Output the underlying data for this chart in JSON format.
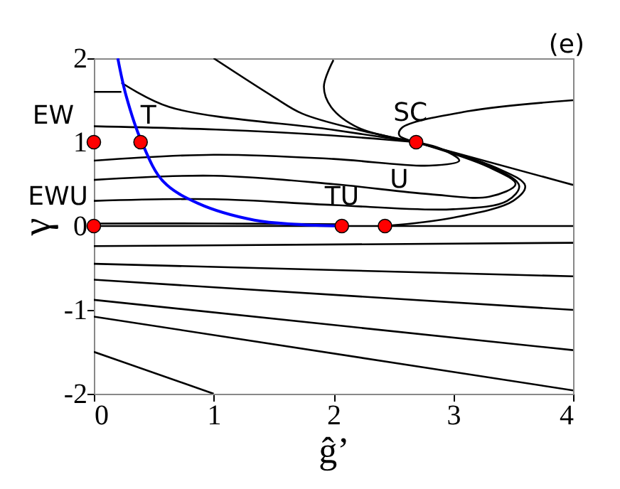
{
  "chart_data": {
    "type": "line",
    "xlabel": "ĝ’",
    "ylabel": "γ",
    "xlim": [
      0,
      4
    ],
    "ylim": [
      -2,
      2
    ],
    "xticks": [
      0,
      1,
      2,
      3,
      4
    ],
    "yticks": [
      -2,
      -1,
      0,
      1,
      2
    ],
    "grid": false,
    "line_style": "solid",
    "series": [
      {
        "color": "#000000",
        "x": [
          0,
          4
        ],
        "values": [
          0,
          0
        ]
      },
      {
        "color": "#000000",
        "x": [
          0,
          1,
          2.07
        ],
        "values": [
          0.03,
          0.03,
          0.02
        ]
      },
      {
        "color": "#000000",
        "x": [
          0,
          4
        ],
        "values": [
          -0.24,
          -0.2
        ]
      },
      {
        "color": "#000000",
        "x": [
          0,
          4
        ],
        "values": [
          -0.45,
          -0.6
        ]
      },
      {
        "color": "#000000",
        "x": [
          0,
          4
        ],
        "values": [
          -0.64,
          -1.0
        ]
      },
      {
        "color": "#000000",
        "x": [
          0,
          4
        ],
        "values": [
          -0.88,
          -1.48
        ]
      },
      {
        "color": "#000000",
        "x": [
          0,
          4
        ],
        "values": [
          -1.08,
          -1.96
        ]
      },
      {
        "color": "#000000",
        "x": [
          0,
          1
        ],
        "values": [
          -1.5,
          -2
        ]
      },
      {
        "color": "#000000",
        "x": [
          0,
          0.23
        ],
        "values": [
          1.6,
          1.6
        ]
      },
      {
        "color": "#000000",
        "x": [
          0.23,
          0.63,
          1.98,
          2.69
        ],
        "values": [
          1.71,
          1.42,
          1.15,
          1.0
        ]
      },
      {
        "color": "#000000",
        "x": [
          0,
          1.02,
          1.98,
          2.69
        ],
        "values": [
          1.19,
          1.15,
          1.08,
          1.0
        ]
      },
      {
        "color": "#000000",
        "x": [
          0,
          1,
          2,
          2.8,
          3.05,
          2.9,
          2.69
        ],
        "values": [
          0.78,
          0.85,
          0.8,
          0.72,
          0.78,
          0.92,
          1.0
        ]
      },
      {
        "color": "#000000",
        "x": [
          0,
          1,
          2,
          2.8,
          3.3,
          3.52,
          3.3,
          2.69
        ],
        "values": [
          0.55,
          0.6,
          0.5,
          0.38,
          0.35,
          0.5,
          0.7,
          1.0
        ]
      },
      {
        "color": "#000000",
        "x": [
          0,
          1,
          2,
          3,
          3.45,
          3.55,
          3.3,
          2.69
        ],
        "values": [
          0.3,
          0.32,
          0.25,
          0.2,
          0.3,
          0.48,
          0.72,
          1.0
        ]
      },
      {
        "color": "#000000",
        "x": [
          2.43,
          3.0,
          3.5,
          3.6,
          3.35,
          2.69
        ],
        "values": [
          0,
          0.1,
          0.3,
          0.48,
          0.7,
          1.0
        ]
      },
      {
        "color": "#000000",
        "x": [
          1,
          1.5,
          1.74,
          2.2,
          2.69
        ],
        "values": [
          2,
          1.54,
          1.34,
          1.15,
          1.0
        ]
      },
      {
        "color": "#000000",
        "x": [
          2.0,
          1.92,
          1.98,
          2.21,
          2.69
        ],
        "values": [
          1.98,
          1.66,
          1.42,
          1.17,
          1.0
        ]
      },
      {
        "color": "#000000",
        "x": [
          4,
          3.13,
          2.57,
          2.55,
          2.69
        ],
        "values": [
          1.5,
          1.37,
          1.17,
          1.08,
          1.0
        ]
      },
      {
        "color": "#000000",
        "x": [
          4,
          2.69
        ],
        "values": [
          0.49,
          1.0
        ]
      },
      {
        "color": "#0000ff",
        "x": [
          0.2,
          0.27,
          0.4,
          0.58,
          0.87,
          1.34,
          1.7,
          2.07
        ],
        "values": [
          2,
          1.55,
          1.0,
          0.53,
          0.27,
          0.07,
          0.02,
          0
        ]
      },
      {
        "type": "scatter",
        "color": "#ff0000",
        "marker": "circle",
        "x": [
          0,
          0.39,
          2.69,
          0,
          2.07,
          2.43
        ],
        "values": [
          1,
          1,
          1,
          0,
          0,
          0
        ]
      }
    ],
    "annotations": [
      {
        "text": "EW",
        "x": 0,
        "y": 1
      },
      {
        "text": "T",
        "x": 0.39,
        "y": 1
      },
      {
        "text": "SC",
        "x": 2.69,
        "y": 1
      },
      {
        "text": "EWU",
        "x": 0,
        "y": 0
      },
      {
        "text": "TU",
        "x": 2.07,
        "y": 0
      },
      {
        "text": "U",
        "x": 2.43,
        "y": 0
      },
      "(e)"
    ]
  }
}
